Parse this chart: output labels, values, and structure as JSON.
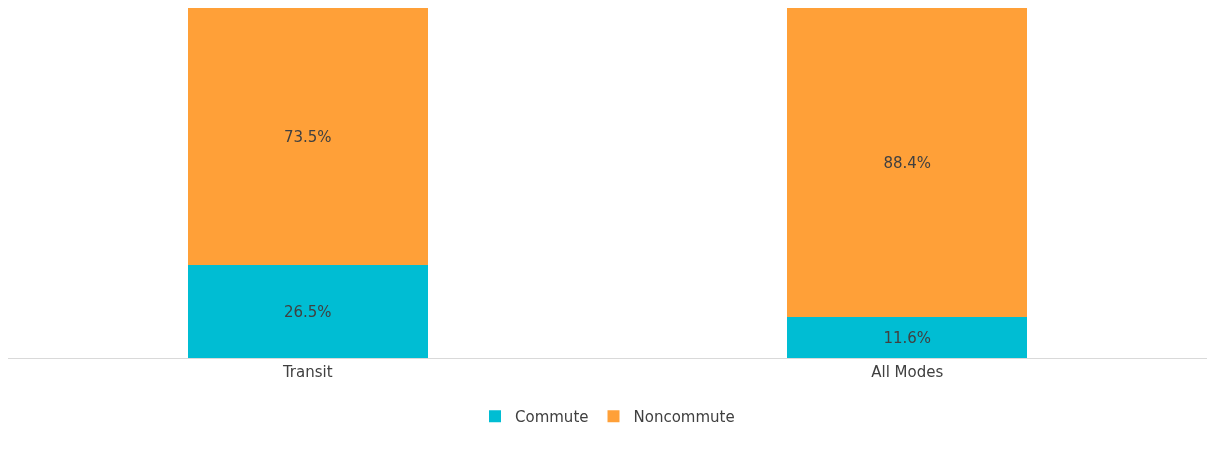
{
  "chart_data": {
    "type": "bar",
    "stacked": true,
    "categories": [
      "Transit",
      "All Modes"
    ],
    "series": [
      {
        "name": "Commute",
        "color": "#00bdd3",
        "values": [
          26.5,
          11.6
        ],
        "value_labels": [
          "26.5%",
          "11.6%"
        ]
      },
      {
        "name": "Noncommute",
        "color": "#ffa038",
        "values": [
          73.5,
          88.4
        ],
        "value_labels": [
          "73.5%",
          "88.4%"
        ]
      }
    ],
    "grid": false,
    "legend": "bottom"
  }
}
